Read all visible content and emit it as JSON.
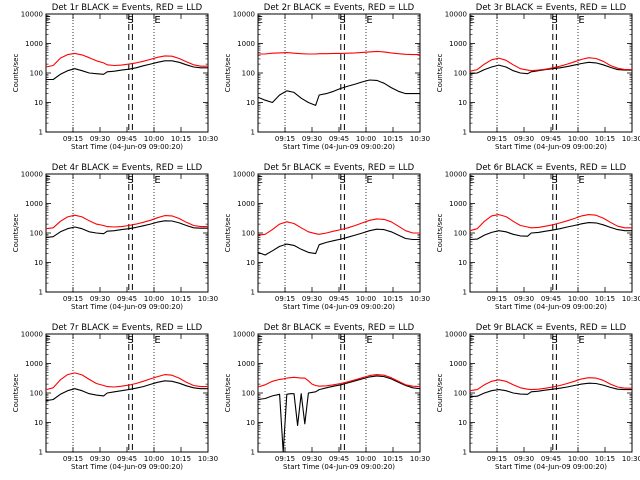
{
  "figure": {
    "ylabel": "Counts/sec",
    "xlabel": "Start Time (04-Jun-09 09:00:20)",
    "xticks": [
      "09:15",
      "09:30",
      "09:45",
      "10:00",
      "10:15",
      "10:30"
    ],
    "yticks": [
      "1",
      "10",
      "100",
      "1000",
      "10000"
    ]
  },
  "chart_data": [
    {
      "type": "line",
      "title": "Det 1r BLACK = Events, RED = LLD",
      "xlabel": "Start Time (04-Jun-09 09:00:20)",
      "ylabel": "Counts/sec",
      "x_unit": "minutes after 09:00:20",
      "xlim": [
        0,
        90
      ],
      "ylim": [
        1,
        10000
      ],
      "y_scale": "log",
      "dotted_lines": [
        15,
        60
      ],
      "dashed_lines": [
        46,
        48
      ],
      "markers": [
        "E",
        "S",
        "E"
      ],
      "x": [
        0,
        4,
        8,
        12,
        16,
        20,
        24,
        28,
        32,
        34,
        38,
        42,
        46,
        50,
        54,
        58,
        62,
        66,
        70,
        74,
        78,
        82,
        86,
        90
      ],
      "series": [
        {
          "name": "Events",
          "color": "#000000",
          "values": [
            60,
            60,
            90,
            120,
            140,
            120,
            100,
            95,
            90,
            110,
            115,
            125,
            135,
            150,
            175,
            200,
            230,
            260,
            260,
            230,
            190,
            160,
            150,
            150
          ]
        },
        {
          "name": "LLD",
          "color": "#ff0000",
          "values": [
            160,
            180,
            320,
            420,
            460,
            410,
            330,
            260,
            220,
            190,
            180,
            185,
            200,
            220,
            250,
            290,
            340,
            380,
            370,
            310,
            240,
            190,
            170,
            170
          ]
        }
      ]
    },
    {
      "type": "line",
      "title": "Det 2r BLACK = Events, RED = LLD",
      "xlabel": "Start Time (04-Jun-09 09:00:20)",
      "ylabel": "Counts/sec",
      "x_unit": "minutes after 09:00:20",
      "xlim": [
        0,
        90
      ],
      "ylim": [
        1,
        10000
      ],
      "y_scale": "log",
      "dotted_lines": [
        15,
        60
      ],
      "dashed_lines": [
        46,
        48
      ],
      "markers": [
        "E",
        "S",
        "E"
      ],
      "x": [
        0,
        4,
        8,
        12,
        16,
        20,
        24,
        28,
        32,
        34,
        38,
        42,
        46,
        50,
        54,
        58,
        62,
        66,
        70,
        74,
        78,
        82,
        86,
        90
      ],
      "series": [
        {
          "name": "Events",
          "color": "#000000",
          "values": [
            15,
            12,
            10,
            18,
            25,
            22,
            14,
            10,
            8,
            18,
            20,
            24,
            30,
            36,
            42,
            50,
            58,
            56,
            45,
            32,
            24,
            20,
            20,
            20
          ]
        },
        {
          "name": "LLD",
          "color": "#ff0000",
          "values": [
            440,
            440,
            470,
            480,
            490,
            470,
            450,
            440,
            440,
            450,
            450,
            460,
            460,
            470,
            480,
            500,
            520,
            540,
            520,
            480,
            450,
            430,
            420,
            420
          ]
        }
      ]
    },
    {
      "type": "line",
      "title": "Det 3r BLACK = Events, RED = LLD",
      "xlabel": "Start Time (04-Jun-09 09:00:20)",
      "ylabel": "Counts/sec",
      "x_unit": "minutes after 09:00:20",
      "xlim": [
        0,
        90
      ],
      "ylim": [
        1,
        10000
      ],
      "y_scale": "log",
      "dotted_lines": [
        15,
        60
      ],
      "dashed_lines": [
        46,
        48
      ],
      "markers": [
        "E",
        "S",
        "E"
      ],
      "x": [
        0,
        4,
        8,
        12,
        16,
        20,
        24,
        28,
        32,
        34,
        38,
        42,
        46,
        50,
        54,
        58,
        62,
        66,
        70,
        74,
        78,
        82,
        86,
        90
      ],
      "series": [
        {
          "name": "Events",
          "color": "#000000",
          "values": [
            95,
            100,
            130,
            160,
            185,
            160,
            120,
            100,
            95,
            110,
            120,
            130,
            140,
            150,
            165,
            185,
            210,
            230,
            220,
            190,
            155,
            130,
            125,
            125
          ]
        },
        {
          "name": "LLD",
          "color": "#ff0000",
          "values": [
            115,
            130,
            200,
            280,
            320,
            270,
            190,
            140,
            125,
            120,
            125,
            135,
            150,
            170,
            200,
            240,
            290,
            330,
            310,
            250,
            180,
            145,
            130,
            130
          ]
        }
      ]
    },
    {
      "type": "line",
      "title": "Det 4r BLACK = Events, RED = LLD",
      "xlabel": "Start Time (04-Jun-09 09:00:20)",
      "ylabel": "Counts/sec",
      "x_unit": "minutes after 09:00:20",
      "xlim": [
        0,
        90
      ],
      "ylim": [
        1,
        10000
      ],
      "y_scale": "log",
      "dotted_lines": [
        15,
        60
      ],
      "dashed_lines": [
        46,
        48
      ],
      "markers": [
        "E",
        "S",
        "E"
      ],
      "x": [
        0,
        4,
        8,
        12,
        16,
        20,
        24,
        28,
        32,
        34,
        38,
        42,
        46,
        50,
        54,
        58,
        62,
        66,
        70,
        74,
        78,
        82,
        86,
        90
      ],
      "series": [
        {
          "name": "Events",
          "color": "#000000",
          "values": [
            70,
            75,
            110,
            140,
            160,
            140,
            110,
            100,
            95,
            115,
            120,
            130,
            140,
            155,
            175,
            200,
            235,
            260,
            255,
            220,
            180,
            150,
            145,
            145
          ]
        },
        {
          "name": "LLD",
          "color": "#ff0000",
          "values": [
            140,
            150,
            250,
            350,
            400,
            350,
            260,
            200,
            180,
            165,
            160,
            165,
            180,
            200,
            230,
            270,
            330,
            390,
            380,
            310,
            230,
            180,
            165,
            165
          ]
        }
      ]
    },
    {
      "type": "line",
      "title": "Det 5r BLACK = Events, RED = LLD",
      "xlabel": "Start Time (04-Jun-09 09:00:20)",
      "ylabel": "Counts/sec",
      "x_unit": "minutes after 09:00:20",
      "xlim": [
        0,
        90
      ],
      "ylim": [
        1,
        10000
      ],
      "y_scale": "log",
      "dotted_lines": [
        15,
        60
      ],
      "dashed_lines": [
        46,
        48
      ],
      "markers": [
        "E",
        "S",
        "E"
      ],
      "x": [
        0,
        4,
        8,
        12,
        16,
        20,
        24,
        28,
        32,
        34,
        38,
        42,
        46,
        50,
        54,
        58,
        62,
        66,
        70,
        74,
        78,
        82,
        86,
        90
      ],
      "series": [
        {
          "name": "Events",
          "color": "#000000",
          "values": [
            22,
            18,
            25,
            35,
            42,
            38,
            28,
            22,
            20,
            40,
            48,
            55,
            62,
            72,
            85,
            100,
            120,
            135,
            130,
            110,
            85,
            65,
            60,
            60
          ]
        },
        {
          "name": "LLD",
          "color": "#ff0000",
          "values": [
            85,
            90,
            130,
            200,
            240,
            210,
            150,
            110,
            95,
            90,
            100,
            115,
            130,
            150,
            180,
            220,
            270,
            300,
            290,
            240,
            170,
            120,
            100,
            100
          ]
        }
      ]
    },
    {
      "type": "line",
      "title": "Det 6r BLACK = Events, RED = LLD",
      "xlabel": "Start Time (04-Jun-09 09:00:20)",
      "ylabel": "Counts/sec",
      "x_unit": "minutes after 09:00:20",
      "xlim": [
        0,
        90
      ],
      "ylim": [
        1,
        10000
      ],
      "y_scale": "log",
      "dotted_lines": [
        15,
        60
      ],
      "dashed_lines": [
        46,
        48
      ],
      "markers": [
        "E",
        "S",
        "E"
      ],
      "x": [
        0,
        4,
        8,
        12,
        16,
        20,
        24,
        28,
        32,
        34,
        38,
        42,
        46,
        50,
        54,
        58,
        62,
        66,
        70,
        74,
        78,
        82,
        86,
        90
      ],
      "series": [
        {
          "name": "Events",
          "color": "#000000",
          "values": [
            60,
            62,
            85,
            105,
            120,
            110,
            90,
            80,
            78,
            100,
            105,
            115,
            125,
            140,
            160,
            180,
            205,
            225,
            220,
            190,
            155,
            130,
            120,
            120
          ]
        },
        {
          "name": "LLD",
          "color": "#ff0000",
          "values": [
            120,
            140,
            250,
            380,
            420,
            360,
            250,
            180,
            160,
            150,
            155,
            170,
            190,
            220,
            260,
            310,
            380,
            420,
            400,
            320,
            230,
            170,
            150,
            150
          ]
        }
      ]
    },
    {
      "type": "line",
      "title": "Det 7r BLACK = Events, RED = LLD",
      "xlabel": "Start Time (04-Jun-09 09:00:20)",
      "ylabel": "Counts/sec",
      "x_unit": "minutes after 09:00:20",
      "xlim": [
        0,
        90
      ],
      "ylim": [
        1,
        10000
      ],
      "y_scale": "log",
      "dotted_lines": [
        15,
        60
      ],
      "dashed_lines": [
        46,
        48
      ],
      "markers": [
        "E",
        "S",
        "E"
      ],
      "x": [
        0,
        4,
        8,
        12,
        16,
        20,
        24,
        28,
        32,
        34,
        38,
        42,
        46,
        50,
        54,
        58,
        62,
        66,
        70,
        74,
        78,
        82,
        86,
        90
      ],
      "series": [
        {
          "name": "Events",
          "color": "#000000",
          "values": [
            55,
            60,
            90,
            120,
            140,
            120,
            95,
            85,
            80,
            100,
            110,
            120,
            130,
            145,
            165,
            195,
            230,
            260,
            250,
            215,
            175,
            150,
            140,
            140
          ]
        },
        {
          "name": "LLD",
          "color": "#ff0000",
          "values": [
            130,
            150,
            280,
            420,
            480,
            410,
            290,
            210,
            180,
            165,
            160,
            170,
            185,
            210,
            250,
            300,
            360,
            420,
            400,
            320,
            230,
            180,
            165,
            165
          ]
        }
      ]
    },
    {
      "type": "line",
      "title": "Det 8r BLACK = Events, RED = LLD",
      "xlabel": "Start Time (04-Jun-09 09:00:20)",
      "ylabel": "Counts/sec",
      "x_unit": "minutes after 09:00:20",
      "xlim": [
        0,
        90
      ],
      "ylim": [
        1,
        10000
      ],
      "y_scale": "log",
      "dotted_lines": [
        15,
        60
      ],
      "dashed_lines": [
        46,
        48
      ],
      "markers": [
        "E",
        "S",
        "E"
      ],
      "x": [
        0,
        4,
        8,
        12,
        14,
        16,
        18,
        20,
        22,
        24,
        26,
        28,
        30,
        32,
        34,
        38,
        42,
        46,
        50,
        54,
        58,
        62,
        66,
        70,
        74,
        78,
        82,
        86,
        90
      ],
      "series": [
        {
          "name": "Events",
          "color": "#000000",
          "values": [
            60,
            65,
            80,
            90,
            1,
            90,
            95,
            95,
            8,
            95,
            9,
            100,
            105,
            110,
            130,
            150,
            170,
            190,
            220,
            260,
            300,
            350,
            380,
            360,
            300,
            230,
            180,
            150,
            140
          ]
        },
        {
          "name": "LLD",
          "color": "#ff0000",
          "values": [
            160,
            190,
            250,
            290,
            300,
            320,
            330,
            340,
            330,
            320,
            320,
            260,
            200,
            180,
            170,
            175,
            190,
            210,
            240,
            280,
            330,
            390,
            420,
            400,
            330,
            250,
            190,
            170,
            165
          ]
        }
      ]
    },
    {
      "type": "line",
      "title": "Det 9r BLACK = Events, RED = LLD",
      "xlabel": "Start Time (04-Jun-09 09:00:20)",
      "ylabel": "Counts/sec",
      "x_unit": "minutes after 09:00:20",
      "xlim": [
        0,
        90
      ],
      "ylim": [
        1,
        10000
      ],
      "y_scale": "log",
      "dotted_lines": [
        15,
        60
      ],
      "dashed_lines": [
        46,
        48
      ],
      "markers": [
        "E",
        "S",
        "E"
      ],
      "x": [
        0,
        4,
        8,
        12,
        16,
        20,
        24,
        28,
        32,
        34,
        38,
        42,
        46,
        50,
        54,
        58,
        62,
        66,
        70,
        74,
        78,
        82,
        86,
        90
      ],
      "series": [
        {
          "name": "Events",
          "color": "#000000",
          "values": [
            75,
            78,
            100,
            120,
            130,
            120,
            100,
            92,
            90,
            110,
            115,
            125,
            135,
            145,
            160,
            180,
            200,
            215,
            210,
            185,
            155,
            135,
            130,
            130
          ]
        },
        {
          "name": "LLD",
          "color": "#ff0000",
          "values": [
            120,
            130,
            190,
            250,
            280,
            250,
            190,
            150,
            135,
            130,
            135,
            145,
            160,
            180,
            210,
            250,
            300,
            330,
            320,
            270,
            200,
            160,
            145,
            145
          ]
        }
      ]
    }
  ]
}
